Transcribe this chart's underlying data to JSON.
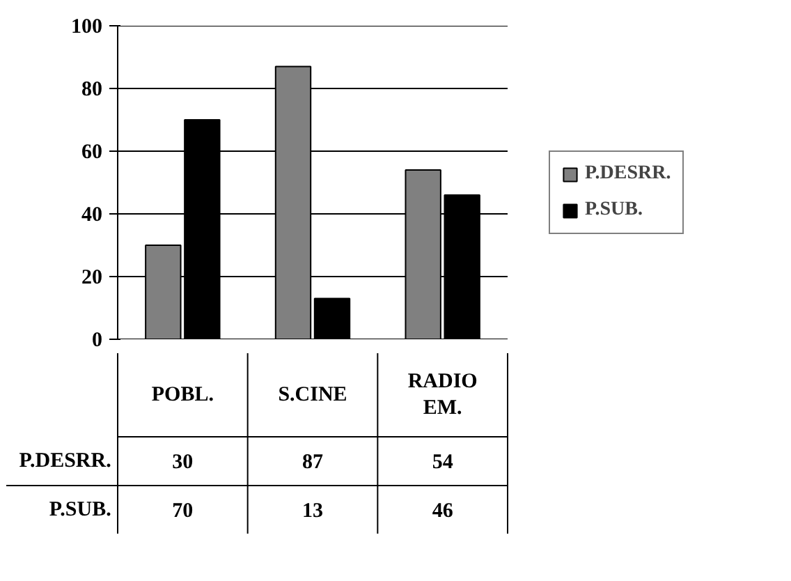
{
  "chart_data": {
    "type": "bar",
    "categories": [
      "POBL.",
      "S.CINE",
      "RADIO EM."
    ],
    "series": [
      {
        "name": "P.DESRR.",
        "color": "#808080",
        "values": [
          30,
          87,
          54
        ]
      },
      {
        "name": "P.SUB.",
        "color": "#000000",
        "values": [
          70,
          13,
          46
        ]
      }
    ],
    "ylim": [
      0,
      100
    ],
    "yticks": [
      0,
      20,
      40,
      60,
      80,
      100
    ],
    "grid": "y",
    "legend": "right",
    "data_labels": true
  }
}
